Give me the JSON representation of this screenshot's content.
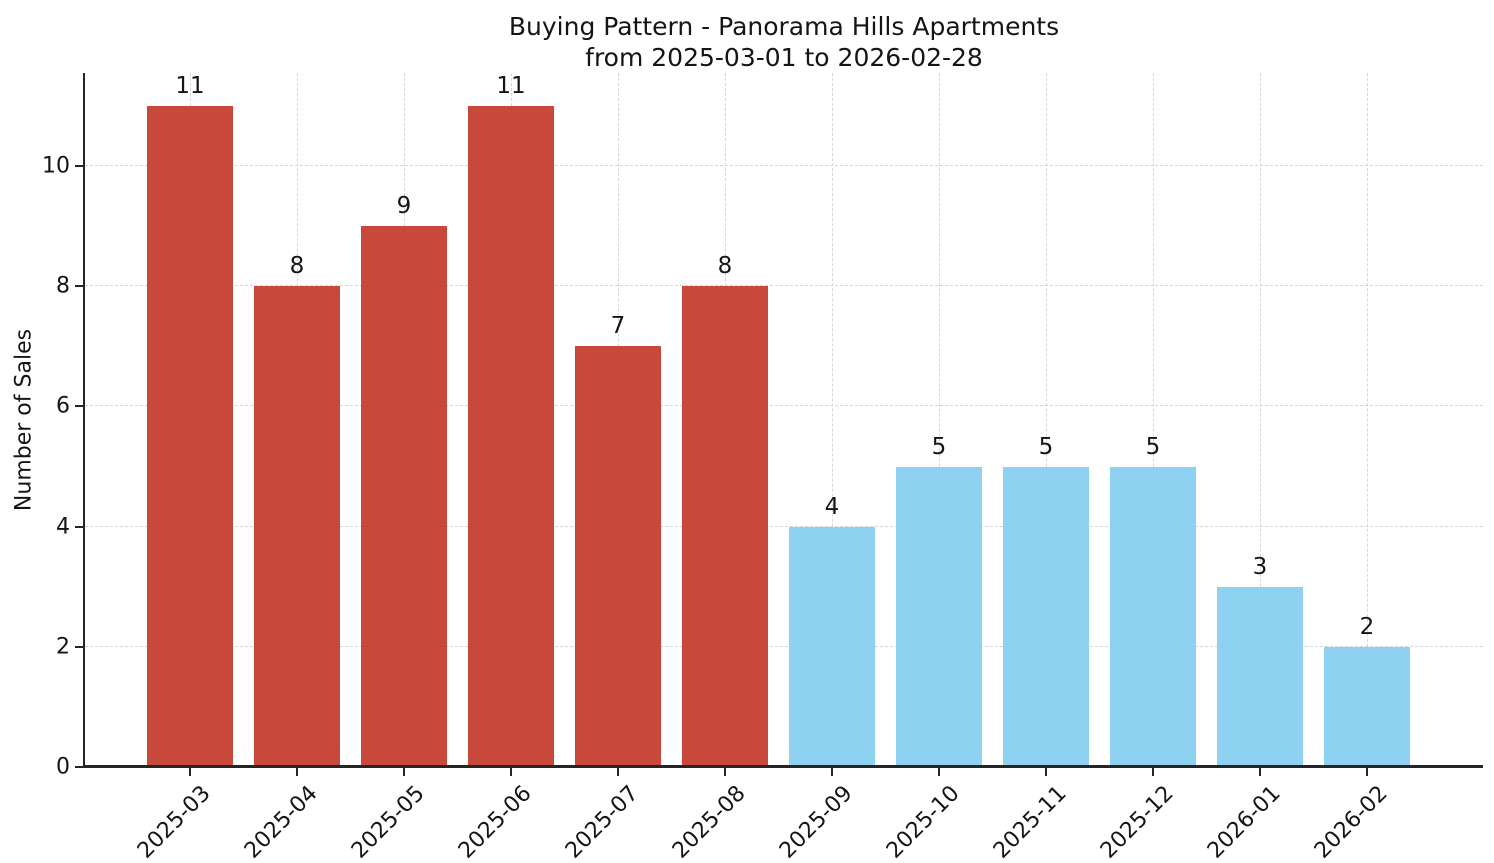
{
  "figure": {
    "title_line1": "Buying Pattern - Panorama Hills Apartments",
    "title_line2": "from 2025-03-01 to 2026-02-28"
  },
  "chart_data": {
    "type": "bar",
    "title": "Buying Pattern - Panorama Hills Apartments\nfrom 2025-03-01 to 2026-02-28",
    "categories": [
      "2025-03",
      "2025-04",
      "2025-05",
      "2025-06",
      "2025-07",
      "2025-08",
      "2025-09",
      "2025-10",
      "2025-11",
      "2025-12",
      "2026-01",
      "2026-02"
    ],
    "values": [
      11,
      8,
      9,
      11,
      7,
      8,
      4,
      5,
      5,
      5,
      3,
      2
    ],
    "bar_colors": [
      "#c43b2c",
      "#c43b2c",
      "#c43b2c",
      "#c43b2c",
      "#c43b2c",
      "#c43b2c",
      "#85cdf0",
      "#85cdf0",
      "#85cdf0",
      "#85cdf0",
      "#85cdf0",
      "#85cdf0"
    ],
    "xlabel": "",
    "ylabel": "Number of Sales",
    "ylim": [
      0,
      11.55
    ],
    "yticks": [
      0,
      2,
      4,
      6,
      8,
      10
    ],
    "grid": {
      "visible": true,
      "style": "dashed",
      "axes": "both"
    },
    "legend": "none",
    "value_labels_shown": true,
    "x_tick_rotation_deg": 45
  },
  "colors": {
    "bar_red": "#c43b2c",
    "bar_blue": "#85cdf0",
    "gridline": "#d6d6d6",
    "spine": "#262626",
    "text": "#151515",
    "background": "#ffffff"
  }
}
